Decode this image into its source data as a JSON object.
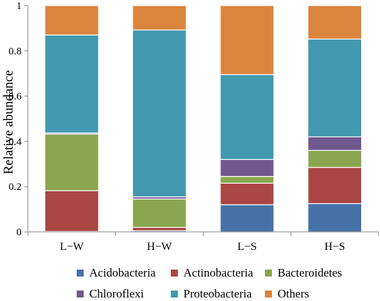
{
  "chart_data": {
    "type": "bar",
    "stacked": true,
    "categories": [
      "L−W",
      "H−W",
      "L−S",
      "H−S"
    ],
    "series": [
      {
        "name": "Acidobacteria",
        "color": "#4672A8",
        "values": [
          0.002,
          0.005,
          0.12,
          0.125
        ]
      },
      {
        "name": "Actinobacteria",
        "color": "#AA4643",
        "values": [
          0.18,
          0.015,
          0.095,
          0.16
        ]
      },
      {
        "name": "Bacteroidetes",
        "color": "#89A54E",
        "values": [
          0.25,
          0.125,
          0.03,
          0.075
        ]
      },
      {
        "name": "Chloroflexi",
        "color": "#71588F",
        "values": [
          0.005,
          0.01,
          0.075,
          0.06
        ]
      },
      {
        "name": "Proteobacteria",
        "color": "#4198AF",
        "values": [
          0.433,
          0.737,
          0.375,
          0.432
        ]
      },
      {
        "name": "Others",
        "color": "#DB843D",
        "values": [
          0.13,
          0.108,
          0.305,
          0.148
        ]
      }
    ],
    "ylabel": "Relative abundance",
    "xlabel": "",
    "ylim": [
      0,
      1
    ],
    "yticks": [
      "0",
      "0.2",
      "0.4",
      "0.6",
      "0.8",
      "1"
    ],
    "ytick_values": [
      0,
      0.2,
      0.4,
      0.6,
      0.8,
      1
    ],
    "grid": false,
    "legend_position": "bottom"
  }
}
